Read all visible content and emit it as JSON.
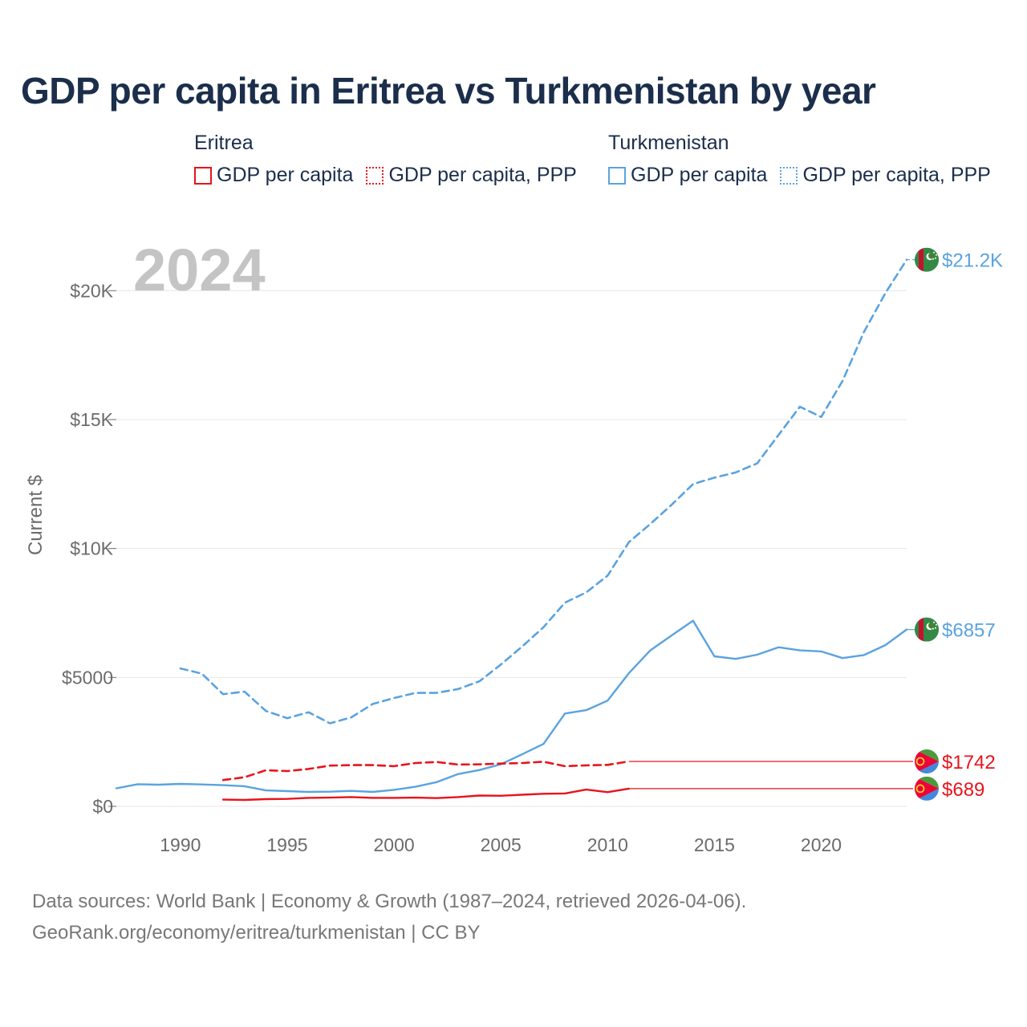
{
  "title": "GDP per capita in Eritrea vs Turkmenistan by year",
  "legend": {
    "groups": [
      {
        "country": "Eritrea",
        "color": "#e8141c",
        "items": [
          {
            "label": "GDP per capita",
            "style": "solid"
          },
          {
            "label": "GDP per capita, PPP",
            "style": "dotted"
          }
        ]
      },
      {
        "country": "Turkmenistan",
        "color": "#5aa3e0",
        "items": [
          {
            "label": "GDP per capita",
            "style": "solid"
          },
          {
            "label": "GDP per capita, PPP",
            "style": "dotted"
          }
        ]
      }
    ]
  },
  "year_watermark": "2024",
  "footer": {
    "line1": "Data sources: World Bank | Economy & Growth (1987–2024, retrieved 2026-04-06).",
    "line2": "GeoRank.org/economy/eritrea/turkmenistan | CC BY"
  },
  "colors": {
    "eritrea": "#e8141c",
    "turkmenistan": "#5aa3e0",
    "grid": "#e6e6e6",
    "tick": "#6b6b6b"
  },
  "chart_data": {
    "type": "line",
    "title": "GDP per capita in Eritrea vs Turkmenistan by year",
    "xlabel": "",
    "ylabel": "Current $",
    "xlim": [
      1987,
      2024
    ],
    "ylim": [
      0,
      22000
    ],
    "x_ticks": [
      1990,
      1995,
      2000,
      2005,
      2010,
      2015,
      2020
    ],
    "x_tick_labels": [
      "1990",
      "1995",
      "2000",
      "2005",
      "2010",
      "2015",
      "2020"
    ],
    "y_ticks": [
      0,
      5000,
      10000,
      15000,
      20000
    ],
    "y_tick_labels": [
      "$0",
      "$5000",
      "$10K",
      "$15K",
      "$20K"
    ],
    "grid": true,
    "series": [
      {
        "name": "Turkmenistan GDP per capita, PPP",
        "country": "turkmenistan",
        "dash": true,
        "end_label": "$21.2K",
        "x": [
          1990,
          1991,
          1992,
          1993,
          1994,
          1995,
          1996,
          1997,
          1998,
          1999,
          2000,
          2001,
          2002,
          2003,
          2004,
          2005,
          2006,
          2007,
          2008,
          2009,
          2010,
          2011,
          2012,
          2013,
          2014,
          2015,
          2016,
          2017,
          2018,
          2019,
          2020,
          2021,
          2022,
          2023,
          2024
        ],
        "values": [
          5350,
          5150,
          4350,
          4450,
          3700,
          3420,
          3650,
          3220,
          3450,
          3970,
          4200,
          4400,
          4400,
          4550,
          4850,
          5500,
          6200,
          6950,
          7900,
          8300,
          8950,
          10250,
          10950,
          11700,
          12500,
          12750,
          12950,
          13300,
          14400,
          15500,
          15100,
          16500,
          18400,
          19900,
          21200
        ]
      },
      {
        "name": "Turkmenistan GDP per capita",
        "country": "turkmenistan",
        "dash": false,
        "end_label": "$6857",
        "x": [
          1987,
          1988,
          1989,
          1990,
          1991,
          1992,
          1993,
          1994,
          1995,
          1996,
          1997,
          1998,
          1999,
          2000,
          2001,
          2002,
          2003,
          2004,
          2005,
          2006,
          2007,
          2008,
          2009,
          2010,
          2011,
          2012,
          2013,
          2014,
          2015,
          2016,
          2017,
          2018,
          2019,
          2020,
          2021,
          2022,
          2023,
          2024
        ],
        "values": [
          700,
          860,
          840,
          870,
          850,
          820,
          780,
          620,
          590,
          560,
          570,
          600,
          560,
          640,
          760,
          940,
          1250,
          1410,
          1630,
          2020,
          2420,
          3600,
          3730,
          4100,
          5170,
          6050,
          6630,
          7200,
          5820,
          5720,
          5880,
          6170,
          6050,
          6010,
          5750,
          5870,
          6250,
          6857
        ]
      },
      {
        "name": "Eritrea GDP per capita, PPP",
        "country": "eritrea",
        "dash": true,
        "end_label": "$1742",
        "x": [
          1992,
          1993,
          1994,
          1995,
          1996,
          1997,
          1998,
          1999,
          2000,
          2001,
          2002,
          2003,
          2004,
          2005,
          2006,
          2007,
          2008,
          2009,
          2010,
          2011,
          2024
        ],
        "values": [
          1020,
          1130,
          1400,
          1370,
          1450,
          1580,
          1600,
          1600,
          1560,
          1680,
          1720,
          1620,
          1630,
          1660,
          1680,
          1730,
          1560,
          1590,
          1610,
          1742,
          1742
        ]
      },
      {
        "name": "Eritrea GDP per capita",
        "country": "eritrea",
        "dash": false,
        "end_label": "$689",
        "x": [
          1992,
          1993,
          1994,
          1995,
          1996,
          1997,
          1998,
          1999,
          2000,
          2001,
          2002,
          2003,
          2004,
          2005,
          2006,
          2007,
          2008,
          2009,
          2010,
          2011,
          2024
        ],
        "values": [
          260,
          250,
          280,
          290,
          330,
          340,
          360,
          330,
          330,
          340,
          320,
          360,
          420,
          410,
          450,
          490,
          500,
          650,
          550,
          689,
          689
        ]
      }
    ]
  }
}
